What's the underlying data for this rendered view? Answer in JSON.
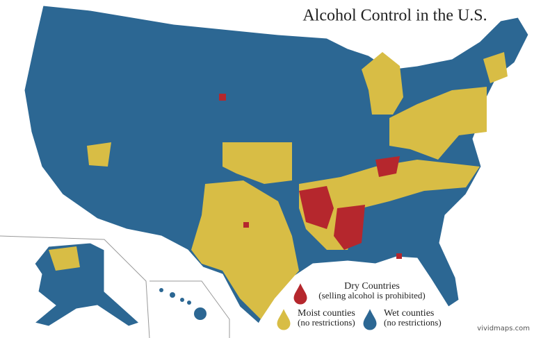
{
  "title": "Alcohol Control in the U.S.",
  "legend": [
    {
      "label": "Dry Countries",
      "sublabel": "(selling alcohol is prohibited)",
      "color": "#b5272d"
    },
    {
      "label": "Moist counties",
      "sublabel": "(no restrictions)",
      "color": "#d8bd45"
    },
    {
      "label": "Wet counties",
      "sublabel": "(no restrictions)",
      "color": "#2c6793"
    }
  ],
  "credit": "vividmaps.com"
}
